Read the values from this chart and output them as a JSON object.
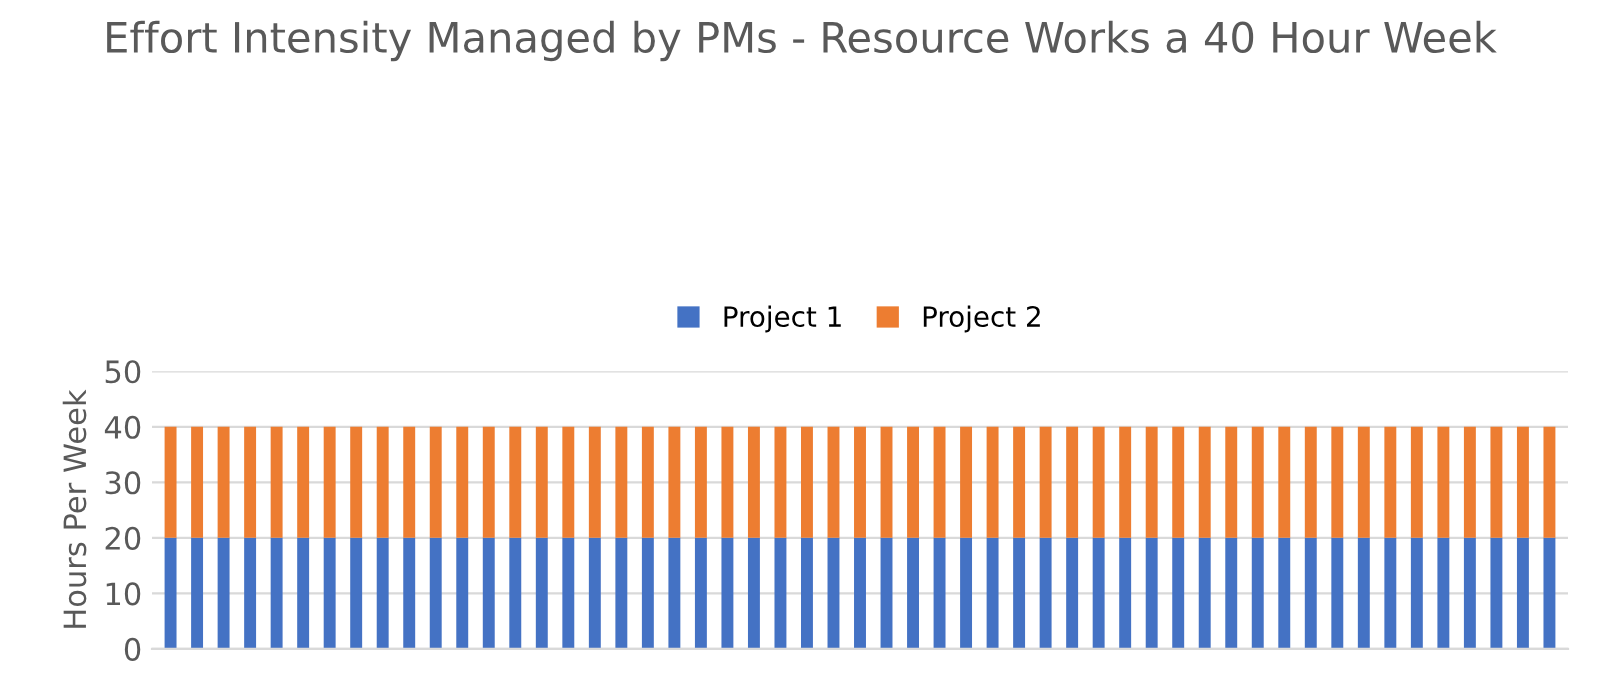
{
  "chart_data": {
    "type": "bar",
    "title": "Effort Intensity Managed by PMs - Resource Works a 40 Hour Week",
    "ylabel": "Hours Per Week",
    "categories": [
      null,
      null,
      null,
      null,
      null,
      null,
      null,
      null,
      null,
      null,
      null,
      null,
      null,
      null,
      null,
      null,
      null,
      null,
      null,
      null,
      null,
      null,
      null,
      null,
      null,
      null,
      null,
      null,
      null,
      null,
      null,
      null,
      null,
      null,
      null,
      null,
      null,
      null,
      null,
      null,
      null,
      null,
      null,
      null,
      null,
      null,
      null,
      null,
      null,
      null,
      null,
      null,
      null
    ],
    "series": [
      {
        "name": "Project 1",
        "color": "#4472c4",
        "values": [
          20,
          20,
          20,
          20,
          20,
          20,
          20,
          20,
          20,
          20,
          20,
          20,
          20,
          20,
          20,
          20,
          20,
          20,
          20,
          20,
          20,
          20,
          20,
          20,
          20,
          20,
          20,
          20,
          20,
          20,
          20,
          20,
          20,
          20,
          20,
          20,
          20,
          20,
          20,
          20,
          20,
          20,
          20,
          20,
          20,
          20,
          20,
          20,
          20,
          20,
          20,
          20,
          20
        ]
      },
      {
        "name": "Project 2",
        "color": "#ed7d31",
        "values": [
          20,
          20,
          20,
          20,
          20,
          20,
          20,
          20,
          20,
          20,
          20,
          20,
          20,
          20,
          20,
          20,
          20,
          20,
          20,
          20,
          20,
          20,
          20,
          20,
          20,
          20,
          20,
          20,
          20,
          20,
          20,
          20,
          20,
          20,
          20,
          20,
          20,
          20,
          20,
          20,
          20,
          20,
          20,
          20,
          20,
          20,
          20,
          20,
          20,
          20,
          20,
          20,
          20
        ]
      }
    ],
    "stacked": true,
    "ylim": [
      0,
      50
    ],
    "yticks": [
      0,
      10,
      20,
      30,
      40,
      50
    ],
    "grid": "y",
    "legend": "top"
  }
}
